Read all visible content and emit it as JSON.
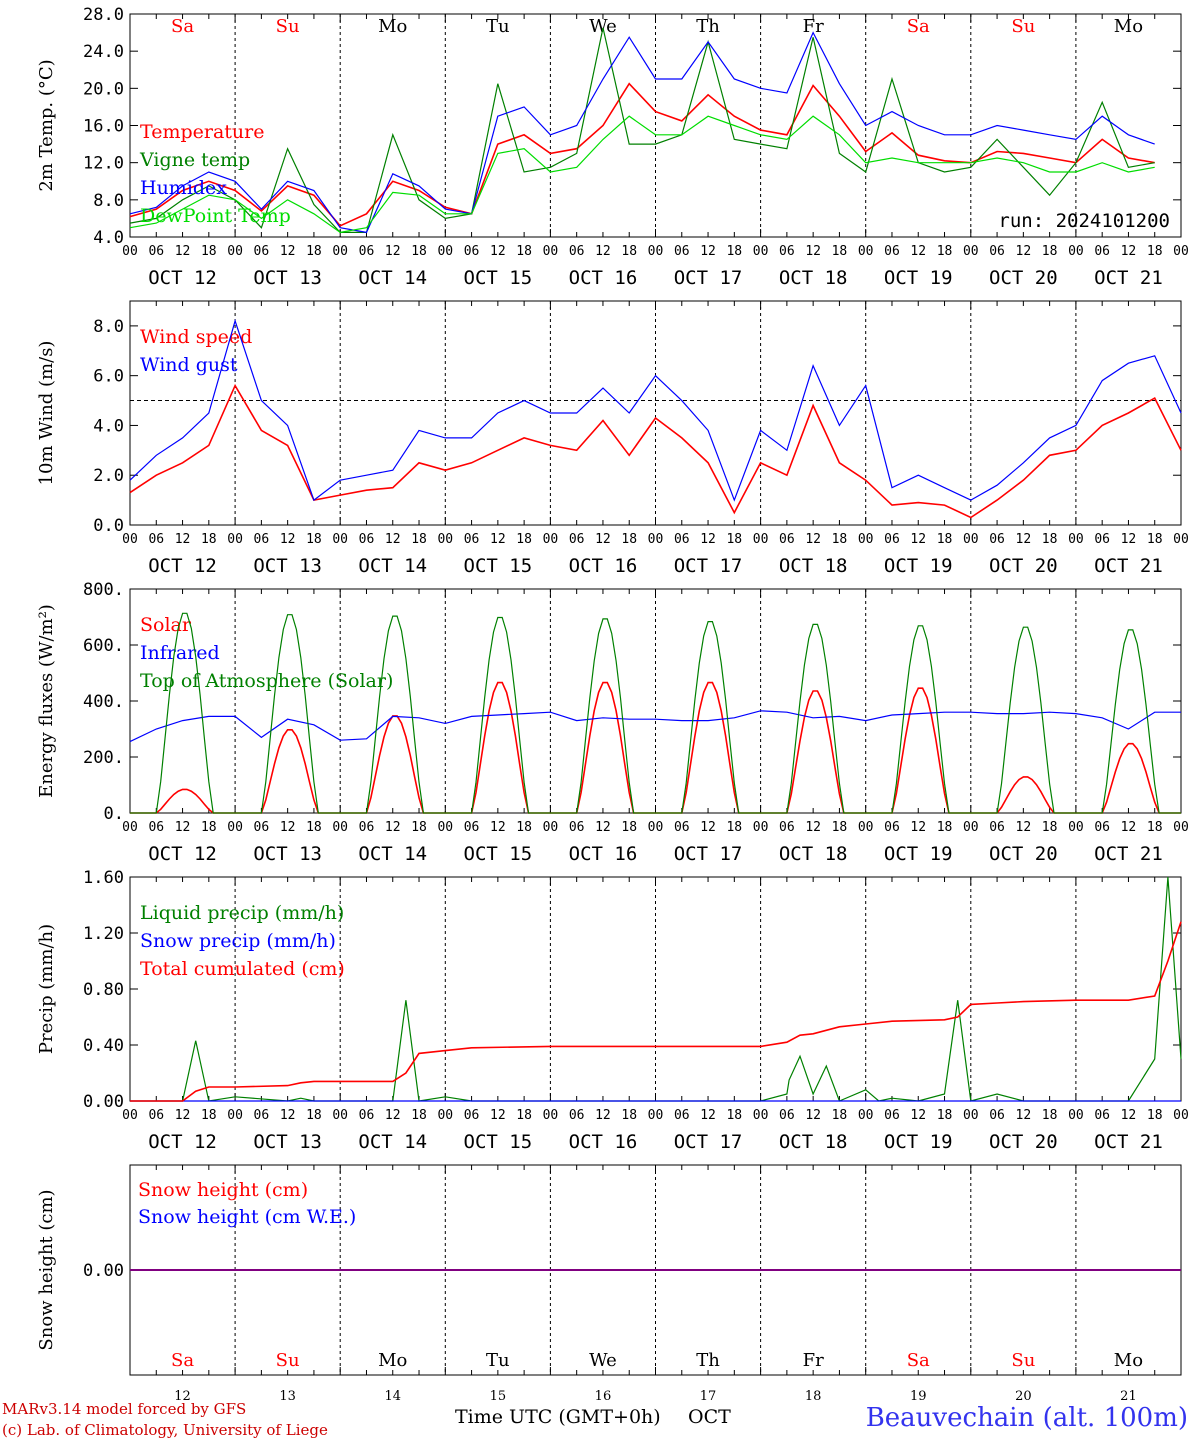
{
  "run_label": "run: 2024101200",
  "footer": {
    "model_line1": "MARv3.14 model forced by GFS",
    "model_line2": "(c) Lab. of Climatology, University of Liege",
    "xaxis_title": "Time UTC (GMT+0h)",
    "month": "OCT",
    "station": "Beauvechain (alt. 100m)"
  },
  "days": {
    "weekday": [
      "Sa",
      "Su",
      "Mo",
      "Tu",
      "We",
      "Th",
      "Fr",
      "Sa",
      "Su",
      "Mo"
    ],
    "weekend_flags": [
      true,
      true,
      false,
      false,
      false,
      false,
      false,
      true,
      true,
      false
    ],
    "date_labels": [
      "OCT 12",
      "OCT 13",
      "OCT 14",
      "OCT 15",
      "OCT 16",
      "OCT 17",
      "OCT 18",
      "OCT 19",
      "OCT 20",
      "OCT 21"
    ],
    "day_numbers": [
      "12",
      "13",
      "14",
      "15",
      "16",
      "17",
      "18",
      "19",
      "20",
      "21"
    ],
    "hour_ticks": [
      "00",
      "06",
      "12",
      "18"
    ],
    "final_tick": "00"
  },
  "colors": {
    "red": "#ff0000",
    "dark_green": "#008000",
    "blue": "#0000ff",
    "light_green": "#00dd00",
    "purple": "#800080"
  },
  "chart_data": [
    {
      "type": "line",
      "ylabel": "2m Temp. (°C)",
      "ylim": [
        4,
        28
      ],
      "ytick_labels": [
        "4.0",
        "8.0",
        "12.0",
        "16.0",
        "20.0",
        "24.0",
        "28.0"
      ],
      "yticks": [
        4,
        8,
        12,
        16,
        20,
        24,
        28
      ],
      "x_unit": "hours since Oct 12 00 UTC",
      "series": [
        {
          "name": "Temperature",
          "color": "#ff0000",
          "x": [
            0,
            6,
            12,
            18,
            24,
            30,
            36,
            42,
            48,
            54,
            60,
            66,
            72,
            78,
            84,
            90,
            96,
            102,
            108,
            114,
            120,
            126,
            132,
            138,
            144,
            150,
            156,
            162,
            168,
            174,
            180,
            186,
            192,
            198,
            204,
            210,
            216,
            222,
            228,
            234
          ],
          "y": [
            6.2,
            7.0,
            9.0,
            10.0,
            9.0,
            6.8,
            9.5,
            8.5,
            5.2,
            6.5,
            10.0,
            9.0,
            7.2,
            6.5,
            14.0,
            15.0,
            13.0,
            13.5,
            16.0,
            20.5,
            17.5,
            16.5,
            19.3,
            17.0,
            15.5,
            15.0,
            20.3,
            17.0,
            13.2,
            15.2,
            12.8,
            12.2,
            12.0,
            13.2,
            13.0,
            12.5,
            12.0,
            14.5,
            12.5,
            12.0
          ]
        },
        {
          "name": "Vigne temp",
          "color": "#008000",
          "x": [
            0,
            6,
            12,
            18,
            24,
            30,
            36,
            42,
            48,
            54,
            60,
            66,
            72,
            78,
            84,
            90,
            96,
            102,
            108,
            114,
            120,
            126,
            132,
            138,
            144,
            150,
            156,
            162,
            168,
            174,
            180,
            186,
            192,
            198,
            204,
            210,
            216,
            222,
            228,
            234
          ],
          "y": [
            5.5,
            6.0,
            8.0,
            9.5,
            8.0,
            5.0,
            13.5,
            7.5,
            4.5,
            4.5,
            15.0,
            8.0,
            6.0,
            6.5,
            20.5,
            11.0,
            11.5,
            13.0,
            26.5,
            14.0,
            14.0,
            15.0,
            25.0,
            14.5,
            14.0,
            13.5,
            25.5,
            13.0,
            11.0,
            21.0,
            12.0,
            11.0,
            11.5,
            14.5,
            11.5,
            8.5,
            12.0,
            18.5,
            11.5,
            12.0
          ]
        },
        {
          "name": "Humidex",
          "color": "#0000ff",
          "x": [
            0,
            6,
            12,
            18,
            24,
            30,
            36,
            42,
            48,
            54,
            60,
            66,
            72,
            78,
            84,
            90,
            96,
            102,
            108,
            114,
            120,
            126,
            132,
            138,
            144,
            150,
            156,
            162,
            168,
            174,
            180,
            186,
            192,
            198,
            204,
            210,
            216,
            222,
            228,
            234
          ],
          "y": [
            6.5,
            7.2,
            9.5,
            11.0,
            10.0,
            7.0,
            10.0,
            9.0,
            5.0,
            4.5,
            10.8,
            9.5,
            7.0,
            6.5,
            17.0,
            18.0,
            15.0,
            16.0,
            21.0,
            25.5,
            21.0,
            21.0,
            25.0,
            21.0,
            20.0,
            19.5,
            26.0,
            20.5,
            16.0,
            17.5,
            16.0,
            15.0,
            15.0,
            16.0,
            15.5,
            15.0,
            14.5,
            17.0,
            15.0,
            14.0
          ]
        },
        {
          "name": "DewPoint Temp",
          "color": "#00dd00",
          "x": [
            0,
            6,
            12,
            18,
            24,
            30,
            36,
            42,
            48,
            54,
            60,
            66,
            72,
            78,
            84,
            90,
            96,
            102,
            108,
            114,
            120,
            126,
            132,
            138,
            144,
            150,
            156,
            162,
            168,
            174,
            180,
            186,
            192,
            198,
            204,
            210,
            216,
            222,
            228,
            234
          ],
          "y": [
            5.0,
            5.5,
            7.0,
            8.5,
            8.0,
            6.0,
            8.0,
            6.5,
            4.5,
            5.0,
            8.8,
            8.5,
            6.5,
            6.5,
            13.0,
            13.5,
            11.0,
            11.5,
            14.5,
            17.0,
            15.0,
            15.0,
            17.0,
            16.0,
            15.0,
            14.5,
            17.0,
            15.0,
            12.0,
            12.5,
            12.0,
            12.0,
            12.0,
            12.5,
            12.0,
            11.0,
            11.0,
            12.0,
            11.0,
            11.5
          ]
        }
      ]
    },
    {
      "type": "line",
      "ylabel": "10m Wind (m/s)",
      "ylim": [
        0,
        9
      ],
      "ytick_labels": [
        "0.0",
        "2.0",
        "4.0",
        "6.0",
        "8.0"
      ],
      "yticks": [
        0,
        2,
        4,
        6,
        8
      ],
      "reference_line": 5,
      "series": [
        {
          "name": "Wind speed",
          "color": "#ff0000",
          "x": [
            0,
            6,
            12,
            18,
            24,
            30,
            36,
            42,
            48,
            54,
            60,
            66,
            72,
            78,
            84,
            90,
            96,
            102,
            108,
            114,
            120,
            126,
            132,
            138,
            144,
            150,
            156,
            162,
            168,
            174,
            180,
            186,
            192,
            198,
            204,
            210,
            216,
            222,
            228,
            234,
            240
          ],
          "y": [
            1.3,
            2.0,
            2.5,
            3.2,
            5.6,
            3.8,
            3.2,
            1.0,
            1.2,
            1.4,
            1.5,
            2.5,
            2.2,
            2.5,
            3.0,
            3.5,
            3.2,
            3.0,
            4.2,
            2.8,
            4.3,
            3.5,
            2.5,
            0.5,
            2.5,
            2.0,
            4.8,
            2.5,
            1.8,
            0.8,
            0.9,
            0.8,
            0.3,
            1.0,
            1.8,
            2.8,
            3.0,
            4.0,
            4.5,
            5.1,
            3.0
          ]
        },
        {
          "name": "Wind gust",
          "color": "#0000ff",
          "x": [
            0,
            6,
            12,
            18,
            24,
            30,
            36,
            42,
            48,
            54,
            60,
            66,
            72,
            78,
            84,
            90,
            96,
            102,
            108,
            114,
            120,
            126,
            132,
            138,
            144,
            150,
            156,
            162,
            168,
            174,
            180,
            186,
            192,
            198,
            204,
            210,
            216,
            222,
            228,
            234,
            240
          ],
          "y": [
            1.8,
            2.8,
            3.5,
            4.5,
            8.2,
            5.0,
            4.0,
            1.0,
            1.8,
            2.0,
            2.2,
            3.8,
            3.5,
            3.5,
            4.5,
            5.0,
            4.5,
            4.5,
            5.5,
            4.5,
            6.0,
            5.0,
            3.8,
            1.0,
            3.8,
            3.0,
            6.4,
            4.0,
            5.6,
            1.5,
            2.0,
            1.5,
            1.0,
            1.6,
            2.5,
            3.5,
            4.0,
            5.8,
            6.5,
            6.8,
            4.5
          ]
        }
      ]
    },
    {
      "type": "line",
      "ylabel": "Energy fluxes (W/m²)",
      "ylim": [
        0,
        800
      ],
      "ytick_labels": [
        "0.",
        "200.",
        "400.",
        "600.",
        "800."
      ],
      "yticks": [
        0,
        200,
        400,
        600,
        800
      ],
      "series": [
        {
          "name": "Solar",
          "color": "#ff0000",
          "kind": "diurnal",
          "peaks": [
            85,
            300,
            350,
            470,
            470,
            470,
            440,
            450,
            130,
            250
          ]
        },
        {
          "name": "Infrared",
          "color": "#0000ff",
          "x": [
            0,
            6,
            12,
            18,
            24,
            30,
            36,
            42,
            48,
            54,
            60,
            66,
            72,
            78,
            84,
            90,
            96,
            102,
            108,
            114,
            120,
            126,
            132,
            138,
            144,
            150,
            156,
            162,
            168,
            174,
            180,
            186,
            192,
            198,
            204,
            210,
            216,
            222,
            228,
            234,
            240
          ],
          "y": [
            255,
            300,
            330,
            345,
            345,
            270,
            335,
            315,
            260,
            265,
            345,
            340,
            320,
            345,
            350,
            355,
            360,
            330,
            340,
            335,
            335,
            330,
            330,
            340,
            365,
            360,
            340,
            345,
            330,
            350,
            355,
            360,
            360,
            355,
            355,
            360,
            355,
            340,
            300,
            360,
            360
          ]
        },
        {
          "name": "Top of Atmosphere (Solar)",
          "color": "#008000",
          "kind": "diurnal",
          "peaks": [
            720,
            715,
            710,
            705,
            700,
            690,
            680,
            675,
            670,
            660
          ]
        }
      ]
    },
    {
      "type": "line",
      "ylabel": "Precip (mm/h)",
      "ylim": [
        0,
        1.6
      ],
      "ytick_labels": [
        "0.00",
        "0.40",
        "0.80",
        "1.20",
        "1.60"
      ],
      "yticks": [
        0,
        0.4,
        0.8,
        1.2,
        1.6
      ],
      "series": [
        {
          "name": "Liquid precip (mm/h)",
          "color": "#008000",
          "x": [
            0,
            12,
            15,
            18,
            24,
            36,
            39,
            42,
            60,
            63,
            66,
            72,
            78,
            96,
            120,
            144,
            150,
            150.5,
            153,
            156,
            159,
            162,
            168,
            171,
            174,
            180,
            186,
            189,
            192,
            198,
            204,
            216,
            228,
            234,
            237,
            240
          ],
          "y": [
            0,
            0,
            0.43,
            0,
            0.03,
            0,
            0.02,
            0,
            0,
            0.72,
            0,
            0.03,
            0,
            0,
            0,
            0,
            0.05,
            0.15,
            0.32,
            0.05,
            0.25,
            0,
            0.08,
            0,
            0.02,
            0,
            0.05,
            0.72,
            0,
            0.05,
            0,
            0,
            0,
            0.3,
            1.6,
            0.3
          ]
        },
        {
          "name": "Snow precip (mm/h)",
          "color": "#0000ff",
          "x": [
            0,
            240
          ],
          "y": [
            0,
            0
          ]
        },
        {
          "name": "Total cumulated (cm)",
          "color": "#ff0000",
          "x": [
            0,
            12,
            15,
            18,
            24,
            36,
            39,
            42,
            60,
            63,
            66,
            72,
            78,
            96,
            120,
            144,
            150,
            153,
            156,
            162,
            168,
            174,
            186,
            189,
            192,
            198,
            204,
            216,
            228,
            234,
            237,
            240
          ],
          "y": [
            0,
            0,
            0.07,
            0.1,
            0.1,
            0.11,
            0.13,
            0.14,
            0.14,
            0.2,
            0.34,
            0.36,
            0.38,
            0.39,
            0.39,
            0.39,
            0.42,
            0.47,
            0.48,
            0.53,
            0.55,
            0.57,
            0.58,
            0.6,
            0.69,
            0.7,
            0.71,
            0.72,
            0.72,
            0.75,
            1.0,
            1.28
          ]
        }
      ]
    },
    {
      "type": "line",
      "ylabel": "Snow height (cm)",
      "ytick_labels": [
        "0.00"
      ],
      "series": [
        {
          "name": "Snow height (cm)",
          "color": "#ff0000",
          "x": [
            0,
            240
          ],
          "y": [
            0,
            0
          ]
        },
        {
          "name": "Snow height (cm W.E.)",
          "color": "#0000ff",
          "x": [
            0,
            240
          ],
          "y": [
            0,
            0
          ]
        }
      ]
    }
  ]
}
